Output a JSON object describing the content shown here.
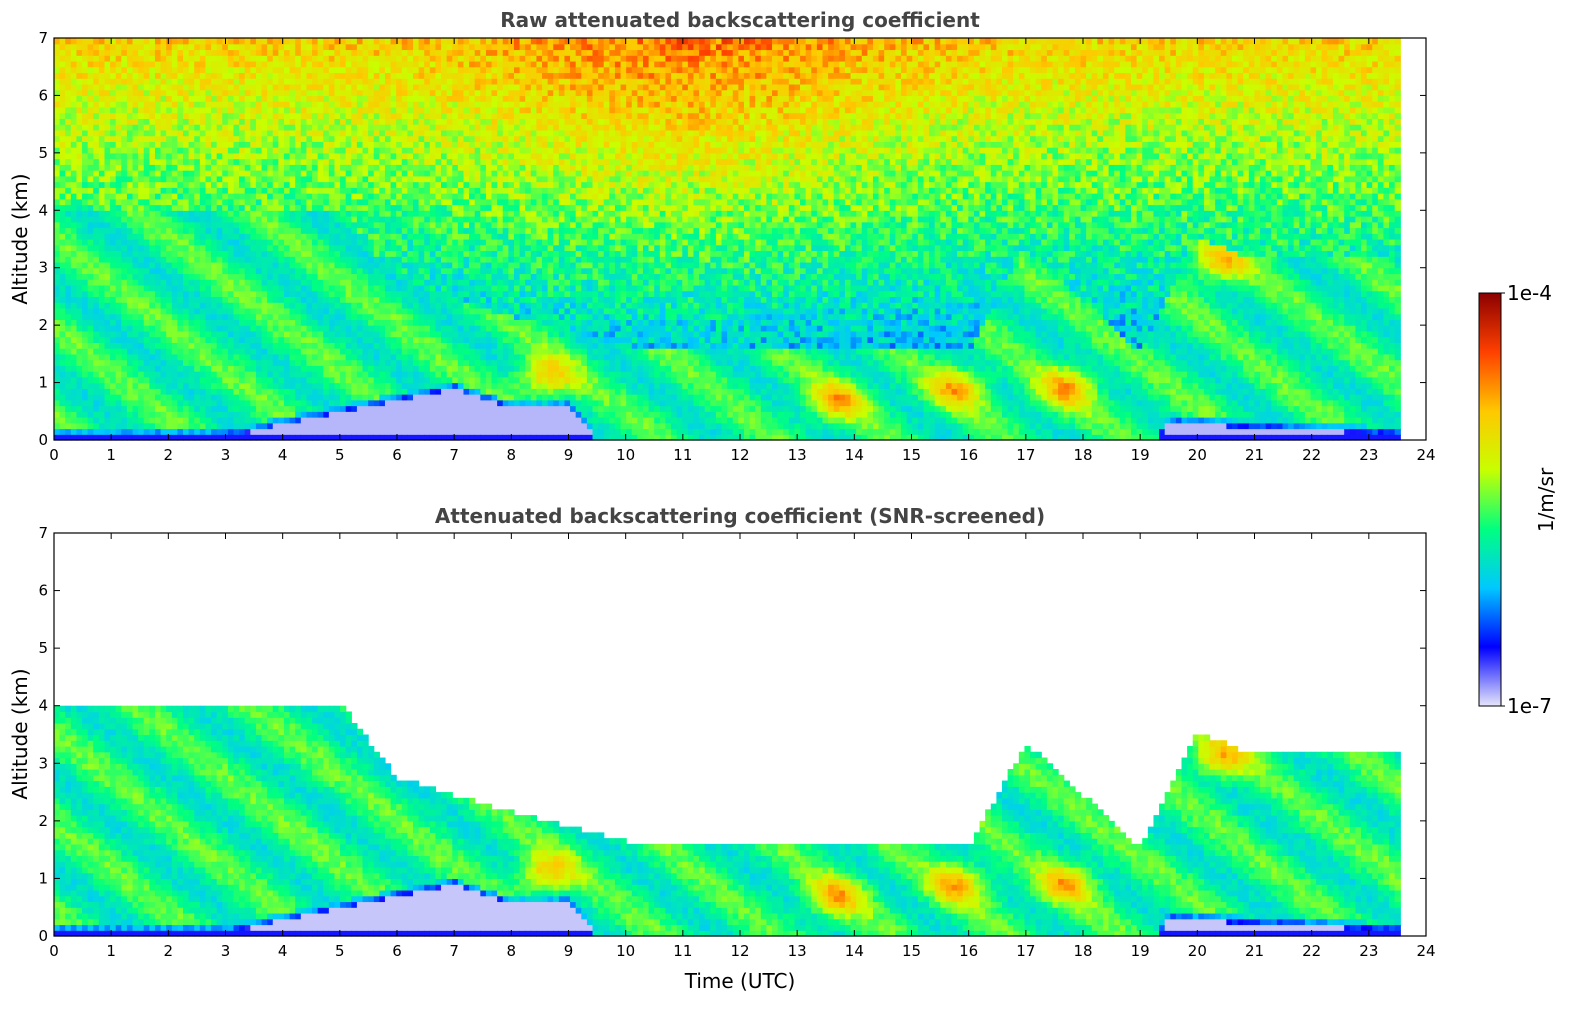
{
  "chart_data": [
    {
      "type": "heatmap",
      "title": "Raw attenuated backscattering coefficient",
      "xlabel": "",
      "ylabel": "Altitude (km)",
      "xlim": [
        0,
        24
      ],
      "ylim": [
        0,
        7
      ],
      "xticks": [
        "0",
        "1",
        "2",
        "3",
        "4",
        "5",
        "6",
        "7",
        "8",
        "9",
        "10",
        "11",
        "12",
        "13",
        "14",
        "15",
        "16",
        "17",
        "18",
        "19",
        "20",
        "21",
        "22",
        "23",
        "24"
      ],
      "yticks": [
        "0",
        "1",
        "2",
        "3",
        "4",
        "5",
        "6",
        "7"
      ],
      "data_end_time": 23.55,
      "screened": false,
      "features": {
        "boundary_layer_top_km": [
          [
            0,
            0.07
          ],
          [
            3,
            0.07
          ],
          [
            7,
            0.9
          ],
          [
            8,
            0.55
          ],
          [
            9,
            0.6
          ],
          [
            9.5,
            0.0
          ],
          [
            19.3,
            0.0
          ],
          [
            19.5,
            0.3
          ],
          [
            23.55,
            0.1
          ]
        ],
        "aerosol_layer_top_km": [
          [
            3,
            3.9
          ],
          [
            5,
            3.9
          ],
          [
            6,
            2.6
          ],
          [
            8,
            2.0
          ],
          [
            10,
            1.5
          ],
          [
            12,
            1.4
          ],
          [
            14,
            1.4
          ],
          [
            16,
            1.4
          ],
          [
            17,
            3.2
          ],
          [
            19,
            1.4
          ],
          [
            20,
            3.4
          ],
          [
            21,
            3.0
          ]
        ],
        "signal_max_hotspots": [
          [
            8.6,
            1.1
          ],
          [
            13.7,
            0.7
          ],
          [
            15.8,
            0.9
          ],
          [
            17.7,
            0.9
          ],
          [
            20.4,
            3.1
          ]
        ]
      }
    },
    {
      "type": "heatmap",
      "title": "Attenuated backscattering coefficient (SNR-screened)",
      "xlabel": "Time (UTC)",
      "ylabel": "Altitude (km)",
      "xlim": [
        0,
        24
      ],
      "ylim": [
        0,
        7
      ],
      "xticks": [
        "0",
        "1",
        "2",
        "3",
        "4",
        "5",
        "6",
        "7",
        "8",
        "9",
        "10",
        "11",
        "12",
        "13",
        "14",
        "15",
        "16",
        "17",
        "18",
        "19",
        "20",
        "21",
        "22",
        "23",
        "24"
      ],
      "yticks": [
        "0",
        "1",
        "2",
        "3",
        "4",
        "5",
        "6",
        "7"
      ],
      "data_end_time": 23.55,
      "screened": true
    }
  ],
  "colorbar": {
    "label": "1/m/sr",
    "max_label": "1e-4",
    "min_label": "1e-7",
    "colormap": [
      "#e6e6fa",
      "#0000ff",
      "#00c8ff",
      "#00ff80",
      "#c8ff00",
      "#ffc800",
      "#ff4000",
      "#8b0000"
    ]
  }
}
